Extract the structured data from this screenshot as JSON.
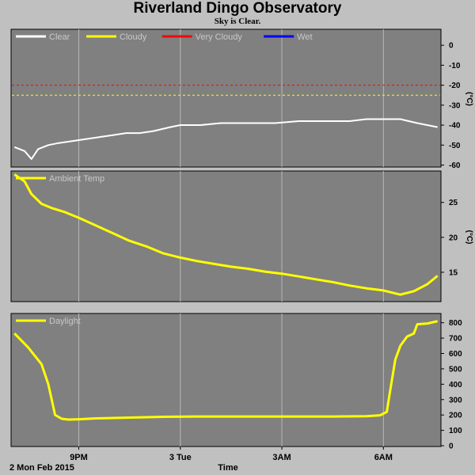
{
  "title": "Riverland Dingo Observatory",
  "subtitle": "Sky is Clear.",
  "x_axis": {
    "label": "Time",
    "date_label": "2 Mon Feb 2015",
    "ticks": [
      "9PM",
      "3 Tue",
      "3AM",
      "6AM"
    ],
    "tick_hours": [
      21,
      24,
      27,
      30
    ],
    "range_hours": [
      19.0,
      31.7
    ]
  },
  "colors": {
    "panel": "#808080",
    "grid": "#b8b8b8",
    "white": "#ffffff",
    "yellow": "#ffff00",
    "red": "#ff0000",
    "blue": "#0000ff"
  },
  "chart_data": [
    {
      "type": "line",
      "legend": [
        {
          "name": "Clear",
          "color": "#ffffff"
        },
        {
          "name": "Cloudy",
          "color": "#ffff00"
        },
        {
          "name": "Very Cloudy",
          "color": "#ff0000"
        },
        {
          "name": "Wet",
          "color": "#0000ff"
        }
      ],
      "ylabel": "(°C)",
      "ylim": [
        -61,
        8
      ],
      "yticks": [
        0,
        -10,
        -20,
        -30,
        -40,
        -50,
        -60
      ],
      "thresholds": [
        {
          "value": -20,
          "color": "#ff0000"
        },
        {
          "value": -25,
          "color": "#ffff00"
        }
      ],
      "series": [
        {
          "name": "Clear",
          "color": "#ffffff",
          "x": [
            19.1,
            19.4,
            19.6,
            19.8,
            20.1,
            20.4,
            20.8,
            21.2,
            21.6,
            22.0,
            22.4,
            22.8,
            23.2,
            23.7,
            24.0,
            24.6,
            25.2,
            26.0,
            26.8,
            27.5,
            28.2,
            29.0,
            29.5,
            30.0,
            30.5,
            31.0,
            31.6
          ],
          "y": [
            -51,
            -53,
            -57,
            -52,
            -50,
            -49,
            -48,
            -47,
            -46,
            -45,
            -44,
            -44,
            -43,
            -41,
            -40,
            -40,
            -39,
            -39,
            -39,
            -38,
            -38,
            -38,
            -37,
            -37,
            -37,
            -39,
            -41
          ]
        }
      ]
    },
    {
      "type": "line",
      "legend": [
        {
          "name": "Ambient Temp",
          "color": "#ffff00"
        }
      ],
      "ylabel": "(°C)",
      "ylim": [
        10.8,
        29.5
      ],
      "yticks": [
        15,
        20,
        25
      ],
      "series": [
        {
          "name": "Ambient Temp",
          "color": "#ffff00",
          "x": [
            19.1,
            19.4,
            19.6,
            19.9,
            20.2,
            20.6,
            21.0,
            21.5,
            22.0,
            22.5,
            23.0,
            23.5,
            24.0,
            24.5,
            25.0,
            25.5,
            26.0,
            26.5,
            27.0,
            27.5,
            28.0,
            28.5,
            29.0,
            29.5,
            30.0,
            30.5,
            30.9,
            31.3,
            31.6
          ],
          "y": [
            29.0,
            28.0,
            26.2,
            24.8,
            24.2,
            23.6,
            22.8,
            21.7,
            20.6,
            19.5,
            18.7,
            17.7,
            17.1,
            16.6,
            16.2,
            15.8,
            15.5,
            15.1,
            14.8,
            14.4,
            14.0,
            13.6,
            13.1,
            12.7,
            12.4,
            11.8,
            12.3,
            13.3,
            14.5
          ]
        }
      ]
    },
    {
      "type": "line",
      "legend": [
        {
          "name": "Daylight",
          "color": "#ffff00"
        }
      ],
      "ylabel": "",
      "ylim": [
        -5,
        860
      ],
      "yticks": [
        0,
        100,
        200,
        300,
        400,
        500,
        600,
        700,
        800
      ],
      "series": [
        {
          "name": "Daylight",
          "color": "#ffff00",
          "x": [
            19.1,
            19.5,
            19.9,
            20.1,
            20.3,
            20.5,
            20.7,
            21.0,
            21.5,
            22.5,
            23.5,
            24.5,
            25.5,
            26.5,
            27.5,
            28.5,
            29.5,
            29.9,
            30.1,
            30.2,
            30.35,
            30.5,
            30.7,
            30.9,
            31.0,
            31.3,
            31.6
          ],
          "y": [
            730,
            640,
            530,
            400,
            200,
            175,
            170,
            172,
            178,
            183,
            188,
            190,
            190,
            190,
            190,
            190,
            192,
            198,
            220,
            360,
            560,
            650,
            710,
            730,
            790,
            795,
            810
          ]
        }
      ]
    }
  ]
}
